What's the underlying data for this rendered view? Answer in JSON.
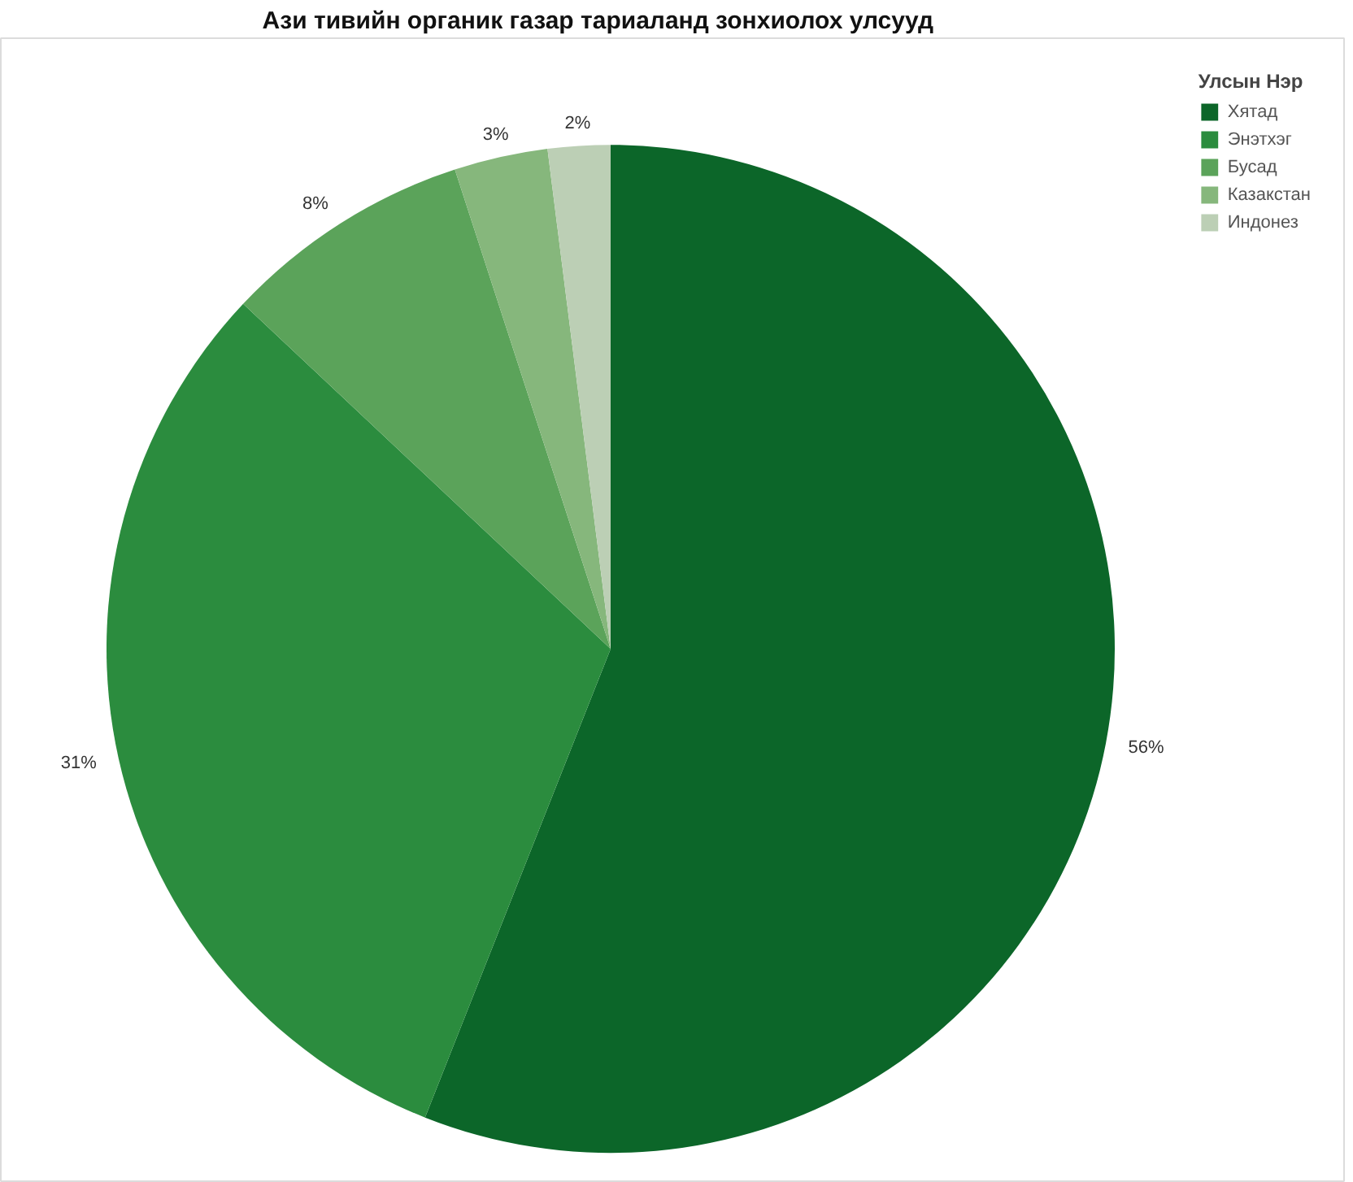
{
  "chart_data": {
    "type": "pie",
    "title": "Ази тивийн органик газар тариаланд зонхиолох улсууд",
    "legend_title": "Улсын Нэр",
    "categories": [
      "Хятад",
      "Энэтхэг",
      "Бусад",
      "Казакстан",
      "Индонез"
    ],
    "values": [
      56,
      31,
      8,
      3,
      2
    ],
    "value_labels": [
      "56%",
      "31%",
      "8%",
      "3%",
      "2%"
    ],
    "colors": [
      "#0c6629",
      "#2b8c3e",
      "#5ba35a",
      "#86b77c",
      "#bccfb5"
    ],
    "legend": "top right"
  }
}
